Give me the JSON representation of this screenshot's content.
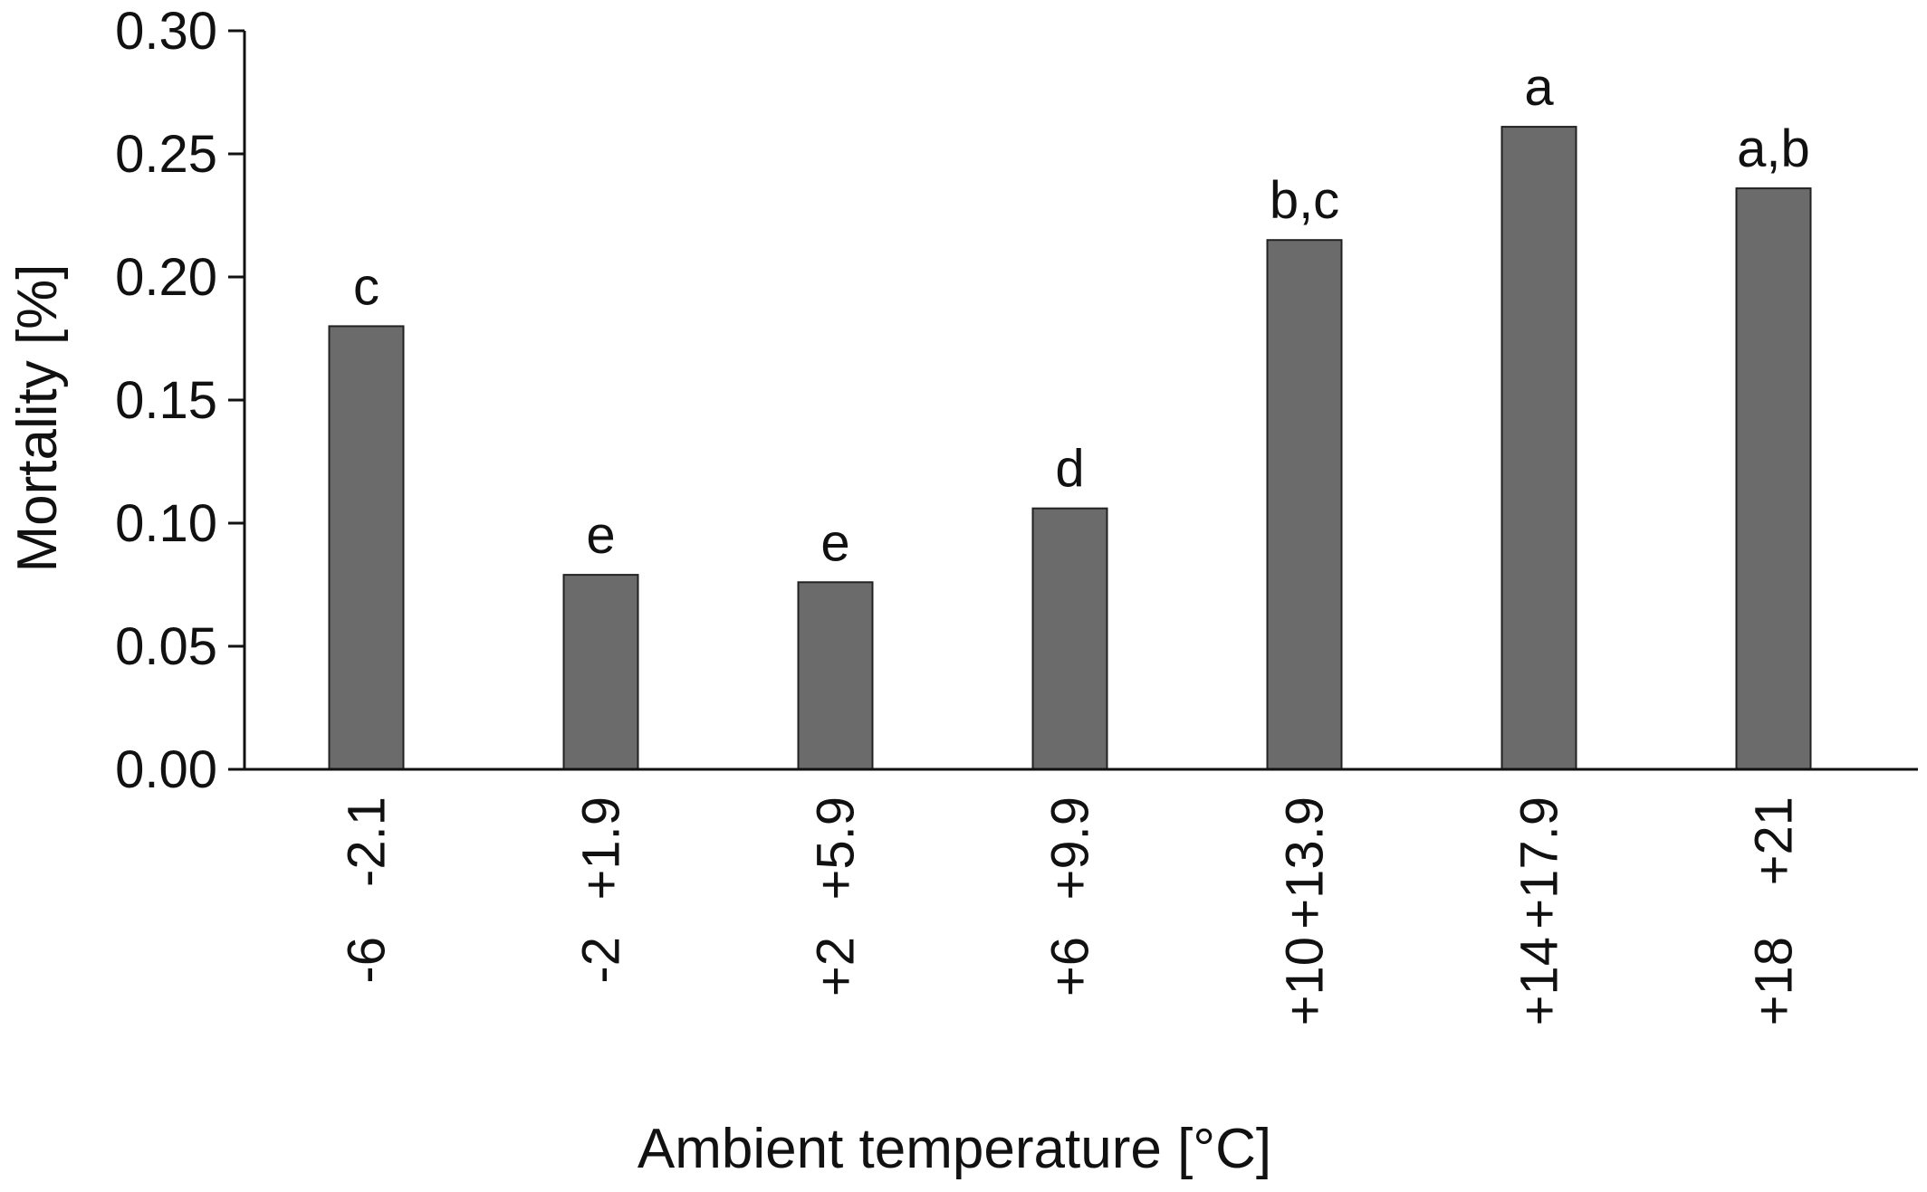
{
  "chart_data": {
    "type": "bar",
    "categories": [
      {
        "high": "-2.1",
        "low": "-6"
      },
      {
        "high": "+1.9",
        "low": "-2"
      },
      {
        "high": "+5.9",
        "low": "+2"
      },
      {
        "high": "+9.9",
        "low": "+6"
      },
      {
        "high": "+13.9",
        "low": "+10"
      },
      {
        "high": "+17.9",
        "low": "+14"
      },
      {
        "high": "+21",
        "low": "+18"
      }
    ],
    "values": [
      0.18,
      0.079,
      0.076,
      0.106,
      0.215,
      0.261,
      0.236
    ],
    "significance_letters": [
      "c",
      "e",
      "e",
      "d",
      "b,c",
      "a",
      "a,b"
    ],
    "ylabel": "Mortality [%]",
    "xlabel": "Ambient temperature [°C]",
    "ylim": [
      0,
      0.3
    ],
    "yticks": [
      "0.00",
      "0.05",
      "0.10",
      "0.15",
      "0.20",
      "0.25",
      "0.30"
    ],
    "bar_color": "#6b6b6b",
    "grid": false
  }
}
